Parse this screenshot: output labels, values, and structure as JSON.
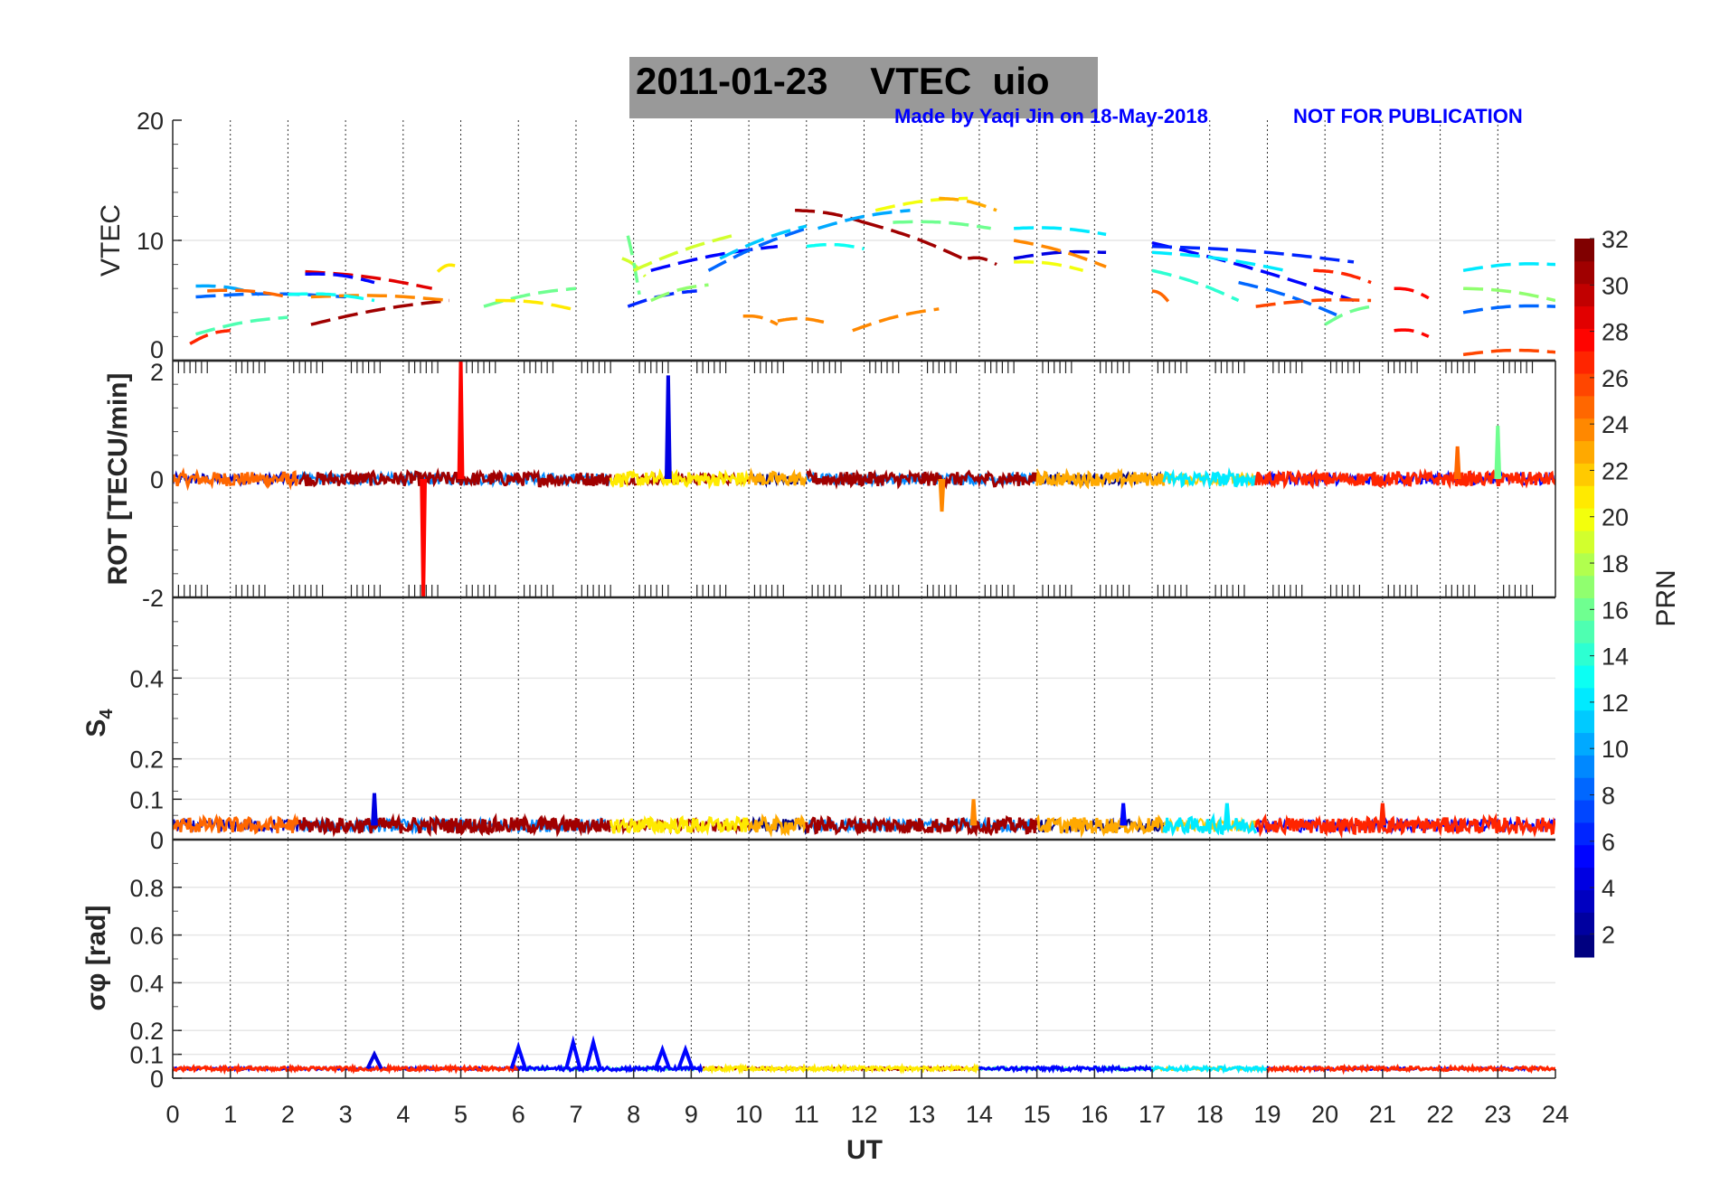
{
  "chart_data": {
    "type": "line",
    "title": "2011-01-23    VTEC  uio",
    "watermark": "Made by Yaqi Jin on 18-May-2018",
    "notice": "NOT FOR PUBLICATION",
    "xlabel": "UT",
    "xlim": [
      0,
      24
    ],
    "xticks": [
      "0",
      "1",
      "2",
      "3",
      "4",
      "5",
      "6",
      "7",
      "8",
      "9",
      "10",
      "11",
      "12",
      "13",
      "14",
      "15",
      "16",
      "17",
      "18",
      "19",
      "20",
      "21",
      "22",
      "23",
      "24"
    ],
    "colorbar": {
      "label": "PRN",
      "range": [
        1,
        32
      ],
      "ticks": [
        "2",
        "4",
        "6",
        "8",
        "10",
        "12",
        "14",
        "16",
        "18",
        "20",
        "22",
        "24",
        "26",
        "28",
        "30",
        "32"
      ],
      "colormap": "jet"
    },
    "panels": [
      {
        "id": "vtec",
        "ylabel": "VTEC",
        "ylim": [
          0,
          20
        ],
        "yticks": [
          {
            "v": 0,
            "t": "0"
          },
          {
            "v": 10,
            "t": "10"
          },
          {
            "v": 20,
            "t": "20"
          }
        ],
        "arcs": [
          {
            "prn": 10,
            "t": [
              0.4,
              1.5
            ],
            "v": [
              6.2,
              5.5
            ]
          },
          {
            "prn": 8,
            "t": [
              0.4,
              3.0
            ],
            "v": [
              5.3,
              5.3
            ]
          },
          {
            "prn": 25,
            "t": [
              0.6,
              2.0
            ],
            "v": [
              5.8,
              5.3
            ]
          },
          {
            "prn": 15,
            "t": [
              0.4,
              2.0
            ],
            "v": [
              2.2,
              3.6
            ]
          },
          {
            "prn": 27,
            "t": [
              0.3,
              1.0
            ],
            "v": [
              1.4,
              2.5
            ]
          },
          {
            "prn": 29,
            "t": [
              2.3,
              4.5
            ],
            "v": [
              7.4,
              6.0
            ]
          },
          {
            "prn": 5,
            "t": [
              2.3,
              3.5
            ],
            "v": [
              7.2,
              6.5
            ]
          },
          {
            "prn": 31,
            "t": [
              2.4,
              4.8
            ],
            "v": [
              3.0,
              5.0
            ]
          },
          {
            "prn": 24,
            "t": [
              2.4,
              4.8
            ],
            "v": [
              5.3,
              5.0
            ]
          },
          {
            "prn": 13,
            "t": [
              2.0,
              3.5
            ],
            "v": [
              5.5,
              5.0
            ]
          },
          {
            "prn": 21,
            "t": [
              4.6,
              4.9
            ],
            "v": [
              7.4,
              7.9
            ]
          },
          {
            "prn": 16,
            "t": [
              5.4,
              7.0
            ],
            "v": [
              4.5,
              6.0
            ]
          },
          {
            "prn": 21,
            "t": [
              5.6,
              7.0
            ],
            "v": [
              5.0,
              4.2
            ]
          },
          {
            "prn": 19,
            "t": [
              7.8,
              8.2
            ],
            "v": [
              8.5,
              7.0
            ]
          },
          {
            "prn": 16,
            "t": [
              7.9,
              8.1
            ],
            "v": [
              10.4,
              5.5
            ]
          },
          {
            "prn": 6,
            "t": [
              7.9,
              9.1
            ],
            "v": [
              4.5,
              5.8
            ]
          },
          {
            "prn": 19,
            "t": [
              8.0,
              9.8
            ],
            "v": [
              7.5,
              10.5
            ]
          },
          {
            "prn": 5,
            "t": [
              8.3,
              10.5
            ],
            "v": [
              7.5,
              9.5
            ]
          },
          {
            "prn": 17,
            "t": [
              8.3,
              9.3
            ],
            "v": [
              5.0,
              6.3
            ]
          },
          {
            "prn": 8,
            "t": [
              9.3,
              11.0
            ],
            "v": [
              7.5,
              11.0
            ]
          },
          {
            "prn": 11,
            "t": [
              9.5,
              11.0
            ],
            "v": [
              8.5,
              11.2
            ]
          },
          {
            "prn": 24,
            "t": [
              9.9,
              10.5
            ],
            "v": [
              3.7,
              3.0
            ]
          },
          {
            "prn": 24,
            "t": [
              10.5,
              11.3
            ],
            "v": [
              3.3,
              3.2
            ]
          },
          {
            "prn": 31,
            "t": [
              10.8,
              12.0
            ],
            "v": [
              12.5,
              11.5
            ]
          },
          {
            "prn": 13,
            "t": [
              11.0,
              12.0
            ],
            "v": [
              9.5,
              9.3
            ]
          },
          {
            "prn": 10,
            "t": [
              11.2,
              12.8
            ],
            "v": [
              11.0,
              12.5
            ]
          },
          {
            "prn": 31,
            "t": [
              12.0,
              13.8
            ],
            "v": [
              11.5,
              8.3
            ]
          },
          {
            "prn": 20,
            "t": [
              12.2,
              13.8
            ],
            "v": [
              12.5,
              13.5
            ]
          },
          {
            "prn": 16,
            "t": [
              12.5,
              14.2
            ],
            "v": [
              11.5,
              11.0
            ]
          },
          {
            "prn": 24,
            "t": [
              11.8,
              13.3
            ],
            "v": [
              2.5,
              4.3
            ]
          },
          {
            "prn": 23,
            "t": [
              13.3,
              14.3
            ],
            "v": [
              13.5,
              12.5
            ]
          },
          {
            "prn": 31,
            "t": [
              13.8,
              14.3
            ],
            "v": [
              8.5,
              8.0
            ]
          },
          {
            "prn": 12,
            "t": [
              14.6,
              16.2
            ],
            "v": [
              11.0,
              10.5
            ]
          },
          {
            "prn": 4,
            "t": [
              14.6,
              16.2
            ],
            "v": [
              8.5,
              9.0
            ]
          },
          {
            "prn": 24,
            "t": [
              14.6,
              16.2
            ],
            "v": [
              10.0,
              7.8
            ]
          },
          {
            "prn": 20,
            "t": [
              14.6,
              15.8
            ],
            "v": [
              8.2,
              7.5
            ]
          },
          {
            "prn": 5,
            "t": [
              17.0,
              20.5
            ],
            "v": [
              9.8,
              5.0
            ]
          },
          {
            "prn": 12,
            "t": [
              17.0,
              19.3
            ],
            "v": [
              9.0,
              7.5
            ]
          },
          {
            "prn": 6,
            "t": [
              17.0,
              20.5
            ],
            "v": [
              9.5,
              8.2
            ]
          },
          {
            "prn": 14,
            "t": [
              17.0,
              18.5
            ],
            "v": [
              7.5,
              5.0
            ]
          },
          {
            "prn": 25,
            "t": [
              17.0,
              17.3
            ],
            "v": [
              5.8,
              4.8
            ]
          },
          {
            "prn": 8,
            "t": [
              18.5,
              20.2
            ],
            "v": [
              6.5,
              3.8
            ]
          },
          {
            "prn": 26,
            "t": [
              18.8,
              20.8
            ],
            "v": [
              4.5,
              5.0
            ]
          },
          {
            "prn": 27,
            "t": [
              19.8,
              20.8
            ],
            "v": [
              7.5,
              6.5
            ]
          },
          {
            "prn": 16,
            "t": [
              20.0,
              20.8
            ],
            "v": [
              3.0,
              4.5
            ]
          },
          {
            "prn": 28,
            "t": [
              21.2,
              21.8
            ],
            "v": [
              6.0,
              5.2
            ]
          },
          {
            "prn": 28,
            "t": [
              21.2,
              21.8
            ],
            "v": [
              2.5,
              2.0
            ]
          },
          {
            "prn": 12,
            "t": [
              22.4,
              24.0
            ],
            "v": [
              7.5,
              8.0
            ]
          },
          {
            "prn": 17,
            "t": [
              22.4,
              24.0
            ],
            "v": [
              6.0,
              5.0
            ]
          },
          {
            "prn": 8,
            "t": [
              22.4,
              24.0
            ],
            "v": [
              4.0,
              4.5
            ]
          },
          {
            "prn": 26,
            "t": [
              22.4,
              24.0
            ],
            "v": [
              0.5,
              0.7
            ]
          }
        ]
      },
      {
        "id": "rot",
        "ylabel": "ROT [TECU/min]",
        "ylim": [
          -2,
          2
        ],
        "yticks": [
          {
            "v": -2,
            "t": "-2"
          },
          {
            "v": 0,
            "t": "0"
          },
          {
            "v": 2,
            "t": "2"
          }
        ],
        "noise_amp": 0.12,
        "baseline": 0,
        "segments": [
          {
            "prn": 25,
            "t": [
              0,
              2.2
            ]
          },
          {
            "prn": 31,
            "t": [
              2.2,
              7.6
            ]
          },
          {
            "prn": 21,
            "t": [
              7.6,
              10
            ]
          },
          {
            "prn": 23,
            "t": [
              10,
              11
            ]
          },
          {
            "prn": 31,
            "t": [
              11,
              15
            ]
          },
          {
            "prn": 23,
            "t": [
              15,
              17.2
            ]
          },
          {
            "prn": 12,
            "t": [
              17.2,
              18.8
            ]
          },
          {
            "prn": 27,
            "t": [
              18.8,
              24
            ]
          }
        ],
        "spikes": [
          {
            "prn": 28,
            "t": 5.0,
            "v": 2.0
          },
          {
            "prn": 28,
            "t": 4.35,
            "v": -2.0
          },
          {
            "prn": 4,
            "t": 8.6,
            "v": 1.75
          },
          {
            "prn": 16,
            "t": 23.0,
            "v": 0.9
          },
          {
            "prn": 25,
            "t": 22.3,
            "v": 0.55
          },
          {
            "prn": 24,
            "t": 13.35,
            "v": -0.55
          }
        ]
      },
      {
        "id": "s4",
        "ylabel": "S4",
        "ylim": [
          0,
          0.6
        ],
        "yticks": [
          {
            "v": 0,
            "t": "0"
          },
          {
            "v": 0.1,
            "t": "0.1"
          },
          {
            "v": 0.2,
            "t": "0.2"
          },
          {
            "v": 0.4,
            "t": "0.4"
          }
        ],
        "noise_amp": 0.02,
        "baseline": 0.035,
        "segments": [
          {
            "prn": 25,
            "t": [
              0,
              2.2
            ]
          },
          {
            "prn": 31,
            "t": [
              2.2,
              7.6
            ]
          },
          {
            "prn": 21,
            "t": [
              7.6,
              10
            ]
          },
          {
            "prn": 23,
            "t": [
              10,
              11
            ]
          },
          {
            "prn": 31,
            "t": [
              11,
              15
            ]
          },
          {
            "prn": 23,
            "t": [
              15,
              17.2
            ]
          },
          {
            "prn": 12,
            "t": [
              17.2,
              18.8
            ]
          },
          {
            "prn": 27,
            "t": [
              18.8,
              24
            ]
          }
        ],
        "spikes": [
          {
            "prn": 4,
            "t": 3.5,
            "v": 0.115
          },
          {
            "prn": 5,
            "t": 16.5,
            "v": 0.09
          },
          {
            "prn": 12,
            "t": 18.3,
            "v": 0.09
          },
          {
            "prn": 27,
            "t": 21.0,
            "v": 0.09
          },
          {
            "prn": 24,
            "t": 13.9,
            "v": 0.1
          }
        ]
      },
      {
        "id": "sigma",
        "ylabel": "σφ [rad]",
        "ylim": [
          0,
          1
        ],
        "yticks": [
          {
            "v": 0,
            "t": "0"
          },
          {
            "v": 0.1,
            "t": "0.1"
          },
          {
            "v": 0.2,
            "t": "0.2"
          },
          {
            "v": 0.4,
            "t": "0.4"
          },
          {
            "v": 0.6,
            "t": "0.6"
          },
          {
            "v": 0.8,
            "t": "0.8"
          }
        ],
        "noise_amp": 0.008,
        "baseline": 0.04,
        "segments": [
          {
            "prn": 27,
            "t": [
              0,
              6
            ]
          },
          {
            "prn": 5,
            "t": [
              6,
              9.2
            ]
          },
          {
            "prn": 21,
            "t": [
              9.2,
              14
            ]
          },
          {
            "prn": 5,
            "t": [
              14,
              17
            ]
          },
          {
            "prn": 12,
            "t": [
              17,
              19
            ]
          },
          {
            "prn": 27,
            "t": [
              19,
              24
            ]
          }
        ],
        "spikes": [
          {
            "prn": 4,
            "t": 3.5,
            "v": 0.1
          },
          {
            "prn": 5,
            "t": 6.0,
            "v": 0.13
          },
          {
            "prn": 5,
            "t": 6.95,
            "v": 0.15
          },
          {
            "prn": 5,
            "t": 7.3,
            "v": 0.15
          },
          {
            "prn": 5,
            "t": 8.5,
            "v": 0.12
          },
          {
            "prn": 5,
            "t": 8.9,
            "v": 0.12
          }
        ]
      }
    ]
  }
}
